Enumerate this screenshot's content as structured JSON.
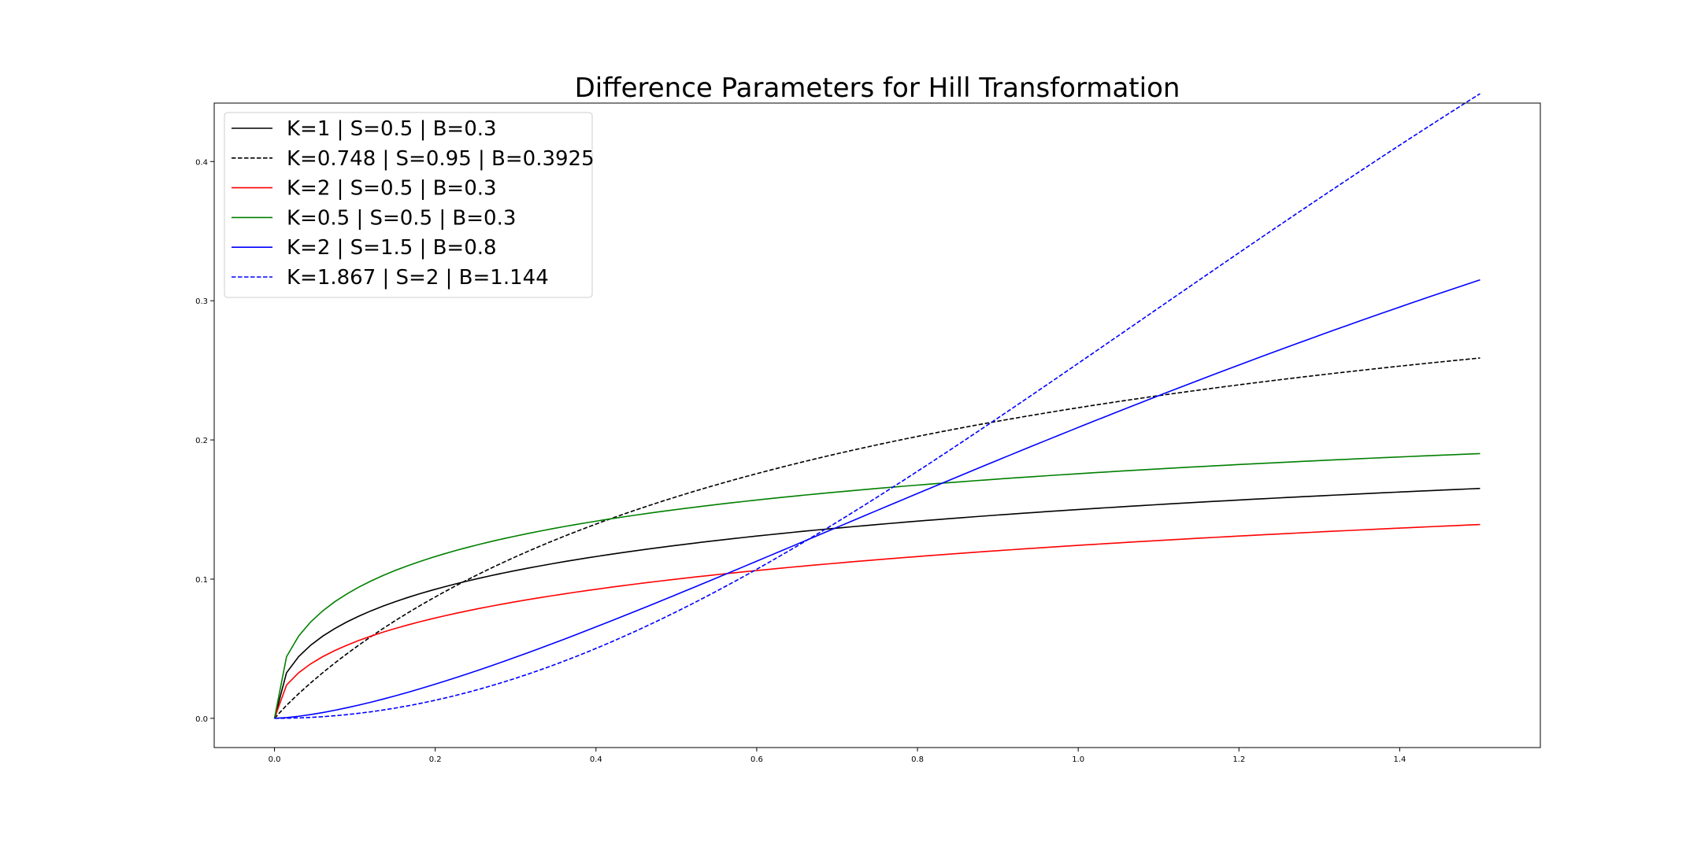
{
  "chart_data": {
    "type": "line",
    "title": "Difference Parameters for Hill Transformation",
    "xlabel": "",
    "ylabel": "",
    "xlim": [
      -0.075,
      1.575
    ],
    "ylim": [
      -0.021,
      0.442
    ],
    "x_ticks": [
      0.0,
      0.2,
      0.4,
      0.6,
      0.8,
      1.0,
      1.2,
      1.4
    ],
    "x_tick_labels": [
      "0.0",
      "0.2",
      "0.4",
      "0.6",
      "0.8",
      "1.0",
      "1.2",
      "1.4"
    ],
    "y_ticks": [
      0.0,
      0.1,
      0.2,
      0.3,
      0.4
    ],
    "y_tick_labels": [
      "0.0",
      "0.1",
      "0.2",
      "0.3",
      "0.4"
    ],
    "grid": false,
    "legend_position": "upper-left",
    "x_range": [
      0,
      1.5
    ],
    "series": [
      {
        "name": "K=1 | S=0.5 | B=0.3",
        "K": 1,
        "S": 0.5,
        "B": 0.3,
        "color": "#000000",
        "dash": "solid"
      },
      {
        "name": "K=0.748 | S=0.95 | B=0.3925",
        "K": 0.748,
        "S": 0.95,
        "B": 0.3925,
        "color": "#000000",
        "dash": "dashed"
      },
      {
        "name": "K=2 | S=0.5 | B=0.3",
        "K": 2,
        "S": 0.5,
        "B": 0.3,
        "color": "#ff0000",
        "dash": "solid"
      },
      {
        "name": "K=0.5 | S=0.5 | B=0.3",
        "K": 0.5,
        "S": 0.5,
        "B": 0.3,
        "color": "#008000",
        "dash": "solid"
      },
      {
        "name": "K=2 | S=1.5 | B=0.8",
        "K": 2,
        "S": 1.5,
        "B": 0.8,
        "color": "#0000ff",
        "dash": "solid"
      },
      {
        "name": "K=1.867 | S=2 | B=1.144",
        "K": 1.867,
        "S": 2,
        "B": 1.144,
        "color": "#0000ff",
        "dash": "dashed"
      }
    ]
  }
}
